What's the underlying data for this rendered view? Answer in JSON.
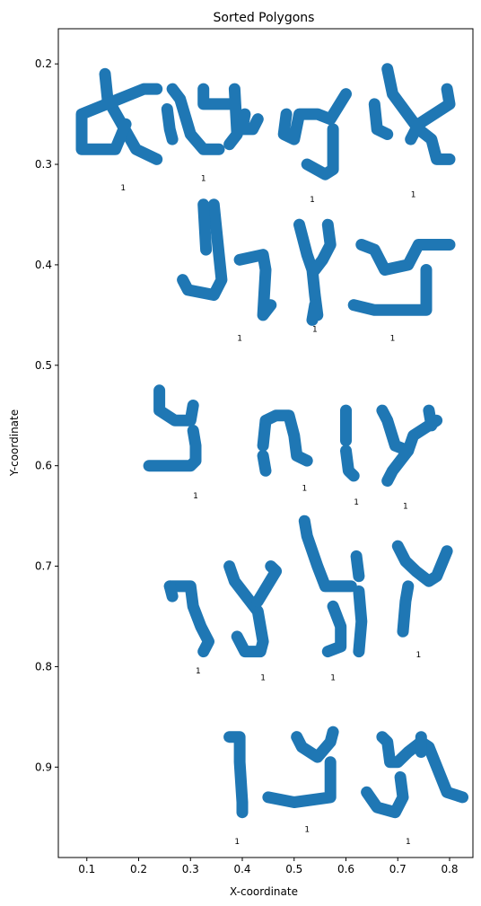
{
  "chart_data": {
    "type": "scatter",
    "title": "Sorted Polygons",
    "xlabel": "X-coordinate",
    "ylabel": "Y-coordinate",
    "xlim": [
      0.045,
      0.845
    ],
    "ylim": [
      0.165,
      0.99
    ],
    "y_inverted": true,
    "grid": false,
    "legend": "none",
    "color": "#1f77b4",
    "xticks": [
      0.1,
      0.2,
      0.3,
      0.4,
      0.5,
      0.6,
      0.7,
      0.8
    ],
    "yticks": [
      0.2,
      0.3,
      0.4,
      0.5,
      0.6,
      0.7,
      0.8,
      0.9
    ],
    "annotations": [
      {
        "text": "1",
        "x": 0.17,
        "y": 0.323
      },
      {
        "text": "1",
        "x": 0.325,
        "y": 0.314
      },
      {
        "text": "1",
        "x": 0.535,
        "y": 0.335
      },
      {
        "text": "1",
        "x": 0.73,
        "y": 0.33
      },
      {
        "text": "1",
        "x": 0.395,
        "y": 0.473
      },
      {
        "text": "1",
        "x": 0.54,
        "y": 0.464
      },
      {
        "text": "1",
        "x": 0.69,
        "y": 0.473
      },
      {
        "text": "1",
        "x": 0.31,
        "y": 0.63
      },
      {
        "text": "1",
        "x": 0.52,
        "y": 0.622
      },
      {
        "text": "1",
        "x": 0.62,
        "y": 0.636
      },
      {
        "text": "1",
        "x": 0.715,
        "y": 0.64
      },
      {
        "text": "1",
        "x": 0.315,
        "y": 0.804
      },
      {
        "text": "1",
        "x": 0.44,
        "y": 0.811
      },
      {
        "text": "1",
        "x": 0.575,
        "y": 0.811
      },
      {
        "text": "1",
        "x": 0.74,
        "y": 0.788
      },
      {
        "text": "1",
        "x": 0.39,
        "y": 0.974
      },
      {
        "text": "1",
        "x": 0.525,
        "y": 0.962
      },
      {
        "text": "1",
        "x": 0.72,
        "y": 0.974
      }
    ],
    "polygons": [
      {
        "center": [
          0.165,
          0.245
        ],
        "strokes": [
          [
            [
              0.135,
              0.21
            ],
            [
              0.14,
              0.235
            ],
            [
              0.195,
              0.285
            ],
            [
              0.235,
              0.295
            ]
          ],
          [
            [
              0.235,
              0.225
            ],
            [
              0.21,
              0.225
            ],
            [
              0.09,
              0.25
            ],
            [
              0.09,
              0.285
            ],
            [
              0.155,
              0.285
            ],
            [
              0.175,
              0.26
            ]
          ]
        ]
      },
      {
        "center": [
          0.325,
          0.25
        ],
        "strokes": [
          [
            [
              0.265,
              0.225
            ],
            [
              0.28,
              0.235
            ],
            [
              0.3,
              0.27
            ],
            [
              0.325,
              0.285
            ],
            [
              0.355,
              0.285
            ]
          ],
          [
            [
              0.325,
              0.225
            ],
            [
              0.325,
              0.24
            ],
            [
              0.385,
              0.24
            ]
          ],
          [
            [
              0.255,
              0.245
            ],
            [
              0.26,
              0.265
            ],
            [
              0.265,
              0.275
            ]
          ],
          [
            [
              0.385,
              0.225
            ],
            [
              0.39,
              0.27
            ],
            [
              0.375,
              0.28
            ]
          ]
        ]
      },
      {
        "center": [
          0.53,
          0.265
        ],
        "strokes": [
          [
            [
              0.485,
              0.25
            ],
            [
              0.48,
              0.27
            ],
            [
              0.5,
              0.275
            ],
            [
              0.51,
              0.25
            ],
            [
              0.545,
              0.25
            ],
            [
              0.57,
              0.255
            ],
            [
              0.6,
              0.23
            ]
          ],
          [
            [
              0.405,
              0.25
            ],
            [
              0.4,
              0.265
            ],
            [
              0.42,
              0.265
            ],
            [
              0.43,
              0.255
            ]
          ],
          [
            [
              0.525,
              0.3
            ],
            [
              0.56,
              0.31
            ],
            [
              0.575,
              0.305
            ],
            [
              0.575,
              0.265
            ]
          ]
        ]
      },
      {
        "center": [
          0.725,
          0.255
        ],
        "strokes": [
          [
            [
              0.68,
              0.205
            ],
            [
              0.69,
              0.23
            ],
            [
              0.74,
              0.265
            ],
            [
              0.765,
              0.275
            ],
            [
              0.775,
              0.295
            ],
            [
              0.8,
              0.295
            ]
          ],
          [
            [
              0.795,
              0.225
            ],
            [
              0.8,
              0.24
            ],
            [
              0.74,
              0.26
            ],
            [
              0.725,
              0.275
            ]
          ],
          [
            [
              0.655,
              0.24
            ],
            [
              0.66,
              0.265
            ],
            [
              0.68,
              0.27
            ]
          ]
        ]
      },
      {
        "center": [
          0.37,
          0.4
        ],
        "strokes": [
          [
            [
              0.345,
              0.34
            ],
            [
              0.355,
              0.39
            ],
            [
              0.36,
              0.415
            ],
            [
              0.345,
              0.43
            ],
            [
              0.295,
              0.425
            ],
            [
              0.285,
              0.415
            ]
          ],
          [
            [
              0.325,
              0.34
            ],
            [
              0.33,
              0.385
            ]
          ],
          [
            [
              0.395,
              0.395
            ],
            [
              0.44,
              0.39
            ],
            [
              0.445,
              0.405
            ],
            [
              0.44,
              0.45
            ],
            [
              0.455,
              0.44
            ]
          ]
        ]
      },
      {
        "center": [
          0.535,
          0.4
        ],
        "strokes": [
          [
            [
              0.51,
              0.36
            ],
            [
              0.525,
              0.39
            ],
            [
              0.535,
              0.405
            ],
            [
              0.54,
              0.43
            ],
            [
              0.545,
              0.45
            ]
          ],
          [
            [
              0.565,
              0.36
            ],
            [
              0.57,
              0.38
            ],
            [
              0.555,
              0.395
            ],
            [
              0.54,
              0.405
            ]
          ],
          [
            [
              0.54,
              0.44
            ],
            [
              0.535,
              0.455
            ]
          ]
        ]
      },
      {
        "center": [
          0.69,
          0.41
        ],
        "strokes": [
          [
            [
              0.63,
              0.38
            ],
            [
              0.655,
              0.385
            ],
            [
              0.675,
              0.405
            ],
            [
              0.72,
              0.4
            ],
            [
              0.74,
              0.38
            ],
            [
              0.8,
              0.38
            ]
          ],
          [
            [
              0.755,
              0.405
            ],
            [
              0.755,
              0.445
            ],
            [
              0.655,
              0.445
            ],
            [
              0.615,
              0.44
            ]
          ]
        ]
      },
      {
        "center": [
          0.285,
          0.57
        ],
        "strokes": [
          [
            [
              0.24,
              0.525
            ],
            [
              0.24,
              0.545
            ],
            [
              0.27,
              0.555
            ],
            [
              0.3,
              0.555
            ],
            [
              0.305,
              0.54
            ]
          ],
          [
            [
              0.305,
              0.565
            ],
            [
              0.31,
              0.58
            ],
            [
              0.31,
              0.595
            ],
            [
              0.3,
              0.6
            ],
            [
              0.22,
              0.6
            ]
          ]
        ]
      },
      {
        "center": [
          0.5,
          0.575
        ],
        "strokes": [
          [
            [
              0.44,
              0.58
            ],
            [
              0.445,
              0.555
            ],
            [
              0.465,
              0.55
            ],
            [
              0.49,
              0.55
            ],
            [
              0.5,
              0.57
            ],
            [
              0.505,
              0.59
            ],
            [
              0.525,
              0.595
            ]
          ],
          [
            [
              0.44,
              0.59
            ],
            [
              0.445,
              0.605
            ]
          ]
        ]
      },
      {
        "center": [
          0.61,
          0.57
        ],
        "strokes": [
          [
            [
              0.6,
              0.545
            ],
            [
              0.6,
              0.575
            ]
          ],
          [
            [
              0.6,
              0.585
            ],
            [
              0.605,
              0.605
            ],
            [
              0.615,
              0.61
            ]
          ]
        ]
      },
      {
        "center": [
          0.705,
          0.575
        ],
        "strokes": [
          [
            [
              0.67,
              0.545
            ],
            [
              0.68,
              0.555
            ],
            [
              0.695,
              0.58
            ],
            [
              0.72,
              0.585
            ],
            [
              0.73,
              0.57
            ],
            [
              0.775,
              0.555
            ]
          ],
          [
            [
              0.76,
              0.545
            ],
            [
              0.765,
              0.56
            ]
          ],
          [
            [
              0.72,
              0.585
            ],
            [
              0.69,
              0.605
            ],
            [
              0.68,
              0.615
            ]
          ]
        ]
      },
      {
        "center": [
          0.31,
          0.74
        ],
        "strokes": [
          [
            [
              0.26,
              0.72
            ],
            [
              0.3,
              0.72
            ],
            [
              0.305,
              0.74
            ],
            [
              0.32,
              0.76
            ],
            [
              0.335,
              0.775
            ],
            [
              0.325,
              0.785
            ]
          ],
          [
            [
              0.26,
              0.72
            ],
            [
              0.265,
              0.73
            ]
          ]
        ]
      },
      {
        "center": [
          0.44,
          0.73
        ],
        "strokes": [
          [
            [
              0.375,
              0.7
            ],
            [
              0.385,
              0.715
            ],
            [
              0.43,
              0.745
            ],
            [
              0.44,
              0.775
            ],
            [
              0.435,
              0.785
            ],
            [
              0.405,
              0.785
            ],
            [
              0.39,
              0.77
            ]
          ],
          [
            [
              0.455,
              0.7
            ],
            [
              0.465,
              0.705
            ],
            [
              0.43,
              0.735
            ]
          ]
        ]
      },
      {
        "center": [
          0.575,
          0.715
        ],
        "strokes": [
          [
            [
              0.52,
              0.655
            ],
            [
              0.525,
              0.67
            ],
            [
              0.545,
              0.7
            ],
            [
              0.56,
              0.72
            ],
            [
              0.61,
              0.72
            ]
          ],
          [
            [
              0.575,
              0.74
            ],
            [
              0.59,
              0.76
            ],
            [
              0.59,
              0.78
            ],
            [
              0.565,
              0.785
            ]
          ],
          [
            [
              0.625,
              0.725
            ],
            [
              0.63,
              0.755
            ],
            [
              0.625,
              0.785
            ]
          ],
          [
            [
              0.62,
              0.69
            ],
            [
              0.625,
              0.71
            ]
          ]
        ]
      },
      {
        "center": [
          0.73,
          0.72
        ],
        "strokes": [
          [
            [
              0.7,
              0.68
            ],
            [
              0.715,
              0.695
            ],
            [
              0.735,
              0.705
            ],
            [
              0.76,
              0.715
            ],
            [
              0.775,
              0.71
            ],
            [
              0.795,
              0.685
            ]
          ],
          [
            [
              0.72,
              0.72
            ],
            [
              0.715,
              0.735
            ],
            [
              0.71,
              0.765
            ]
          ]
        ]
      },
      {
        "center": [
          0.38,
          0.905
        ],
        "strokes": [
          [
            [
              0.375,
              0.87
            ],
            [
              0.395,
              0.87
            ],
            [
              0.395,
              0.895
            ],
            [
              0.4,
              0.935
            ],
            [
              0.4,
              0.945
            ]
          ]
        ]
      },
      {
        "center": [
          0.53,
          0.905
        ],
        "strokes": [
          [
            [
              0.505,
              0.87
            ],
            [
              0.515,
              0.88
            ],
            [
              0.545,
              0.89
            ],
            [
              0.57,
              0.875
            ],
            [
              0.575,
              0.865
            ]
          ],
          [
            [
              0.57,
              0.895
            ],
            [
              0.57,
              0.93
            ],
            [
              0.5,
              0.935
            ],
            [
              0.45,
              0.93
            ]
          ]
        ]
      },
      {
        "center": [
          0.73,
          0.9
        ],
        "strokes": [
          [
            [
              0.67,
              0.87
            ],
            [
              0.68,
              0.875
            ],
            [
              0.685,
              0.895
            ],
            [
              0.7,
              0.895
            ],
            [
              0.72,
              0.885
            ],
            [
              0.745,
              0.875
            ],
            [
              0.76,
              0.88
            ],
            [
              0.795,
              0.925
            ],
            [
              0.825,
              0.93
            ]
          ],
          [
            [
              0.745,
              0.87
            ],
            [
              0.745,
              0.885
            ]
          ],
          [
            [
              0.705,
              0.91
            ],
            [
              0.71,
              0.93
            ],
            [
              0.695,
              0.945
            ],
            [
              0.66,
              0.94
            ],
            [
              0.64,
              0.925
            ]
          ]
        ]
      }
    ]
  }
}
